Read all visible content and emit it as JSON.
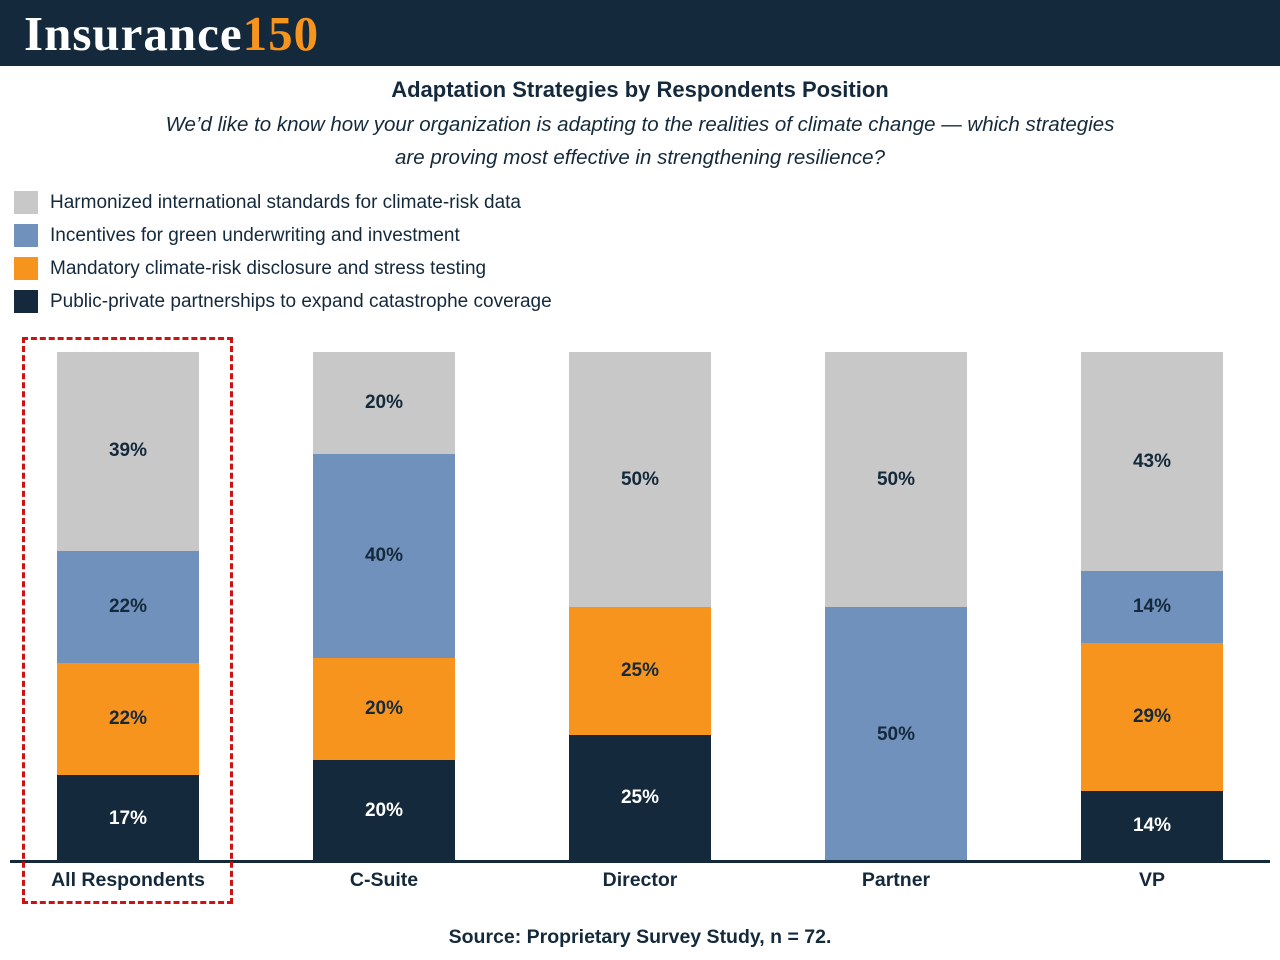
{
  "brand": {
    "name_main": "Insurance",
    "name_accent": "150",
    "bar_color": "#14293B",
    "accent_color": "#F7941E"
  },
  "header": {
    "title": "Adaptation Strategies by Respondents Position",
    "subtitle_line1": "We’d like to know how your organization is adapting to the realities of climate change — which strategies",
    "subtitle_line2": "are proving most effective in strengthening resilience?"
  },
  "legend": [
    {
      "label": "Harmonized international standards for climate-risk data",
      "color": "#C8C8C8"
    },
    {
      "label": "Incentives for green underwriting and investment",
      "color": "#7191BD"
    },
    {
      "label": "Mandatory climate-risk disclosure and stress testing",
      "color": "#F7941E"
    },
    {
      "label": "Public-private partnerships to expand catastrophe coverage",
      "color": "#14293B"
    }
  ],
  "chart_data": {
    "type": "bar",
    "stacked": true,
    "title": "Adaptation Strategies by Respondents Position",
    "xlabel": "",
    "ylabel": "",
    "ylim": [
      0,
      100
    ],
    "grid": false,
    "legend_position": "top-left",
    "value_suffix": "%",
    "categories": [
      "All Respondents",
      "C-Suite",
      "Director",
      "Partner",
      "VP"
    ],
    "series": [
      {
        "name": "Public-private partnerships to expand catastrophe coverage",
        "color": "#14293B",
        "label_color": "#FFFFFF",
        "values": [
          17,
          20,
          25,
          0,
          14
        ]
      },
      {
        "name": "Mandatory climate-risk disclosure and stress testing",
        "color": "#F7941E",
        "label_color": "#14293B",
        "values": [
          22,
          20,
          25,
          0,
          29
        ]
      },
      {
        "name": "Incentives for green underwriting and investment",
        "color": "#7191BD",
        "label_color": "#14293B",
        "values": [
          22,
          40,
          0,
          50,
          14
        ]
      },
      {
        "name": "Harmonized international standards for climate-risk data",
        "color": "#C8C8C8",
        "label_color": "#14293B",
        "values": [
          39,
          20,
          50,
          50,
          43
        ]
      }
    ],
    "highlighted_category": "All Respondents"
  },
  "footer": {
    "source": "Source: Proprietary Survey Study, n = 72."
  }
}
